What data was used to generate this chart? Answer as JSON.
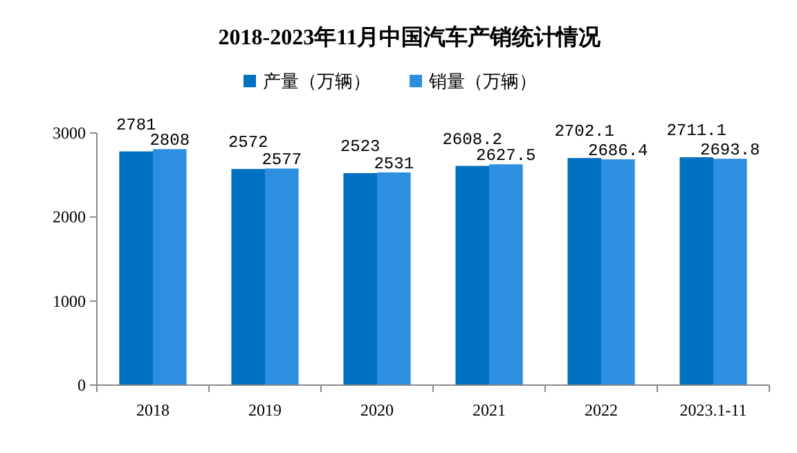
{
  "chart_data": {
    "type": "bar",
    "title": "2018-2023年11月中国汽车产销统计情况",
    "categories": [
      "2018",
      "2019",
      "2020",
      "2021",
      "2022",
      "2023.1-11"
    ],
    "series": [
      {
        "name": "产量（万辆）",
        "color": "#0070c0",
        "values": [
          2781,
          2572,
          2523,
          2608.2,
          2702.1,
          2711.1
        ]
      },
      {
        "name": "销量（万辆）",
        "color": "#2e8fe0",
        "values": [
          2808,
          2577,
          2531,
          2627.5,
          2686.4,
          2693.8
        ]
      }
    ],
    "ylim": [
      0,
      3000
    ],
    "yticks": [
      0,
      1000,
      2000,
      3000
    ],
    "grid": false,
    "legend": "top",
    "data_labels": true
  }
}
